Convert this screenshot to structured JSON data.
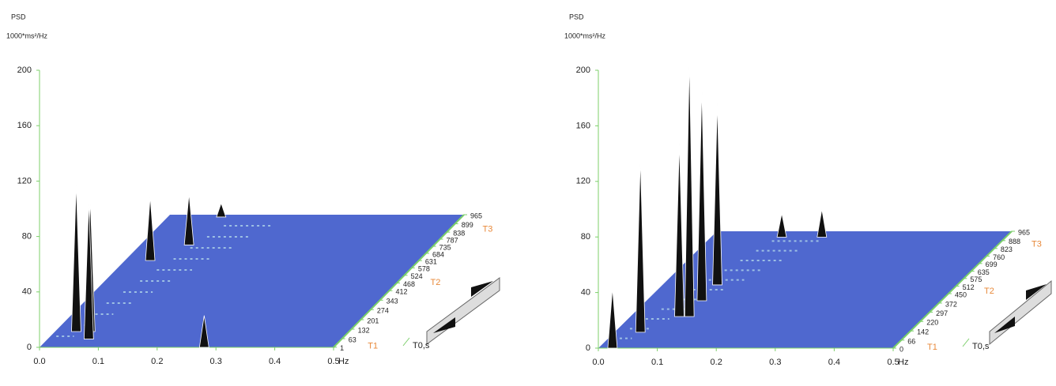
{
  "chart_data": [
    {
      "type": "waterfall3d",
      "ylabel": "PSD",
      "yunit": "1000*ms²/Hz",
      "xlabel": "Hz",
      "zlabel": "T0,s",
      "depth_markers": [
        "T1",
        "T2",
        "T3"
      ],
      "ylim": [
        0,
        200
      ],
      "yticks": [
        0,
        40,
        80,
        120,
        160,
        200
      ],
      "xlim": [
        0,
        0.5
      ],
      "xticks": [
        {
          "value": 0,
          "label": "0.0"
        },
        0.1,
        0.2,
        0.3,
        0.4,
        0.5
      ],
      "zlim": [
        0,
        965
      ],
      "zticks": [
        1,
        63,
        132,
        201,
        274,
        343,
        412,
        468,
        524,
        578,
        631,
        684,
        735,
        787,
        838,
        899,
        965
      ],
      "plane_color": "#4f68cf",
      "axis_color": "#7ccf6a",
      "color": "#111111",
      "peaks": {
        "f": [
          0.036,
          0.06,
          0.07,
          0.043,
          0.083,
          0.28,
          0.091
        ],
        "t": [
          115,
          115,
          60,
          632,
          745,
          0,
          948
        ],
        "values": [
          107,
          95,
          100,
          46,
          37,
          23,
          10
        ]
      }
    },
    {
      "type": "waterfall3d",
      "ylabel": "PSD",
      "yunit": "1000*ms²/Hz",
      "xlabel": "Hz",
      "zlabel": "T0,s",
      "depth_markers": [
        "T1",
        "T2",
        "T3"
      ],
      "ylim": [
        0,
        200
      ],
      "yticks": [
        0,
        40,
        80,
        120,
        160,
        200
      ],
      "xlim": [
        0,
        0.5
      ],
      "xticks": [
        {
          "value": 0,
          "label": "0.0"
        },
        0.1,
        0.2,
        0.3,
        0.4,
        0.5
      ],
      "zlim": [
        0,
        965
      ],
      "zticks": [
        0,
        66,
        142,
        220,
        297,
        372,
        450,
        512,
        575,
        635,
        699,
        760,
        823,
        888,
        965
      ],
      "plane_color": "#4f68cf",
      "axis_color": "#7ccf6a",
      "color": "#111111",
      "peaks": {
        "f": [
          0.044,
          0.1,
          0.094,
          0.093,
          0.083,
          0.024,
          0.188,
          0.12
        ],
        "t": [
          131,
          261,
          391,
          522,
          261,
          0,
          917,
          917
        ],
        "values": [
          125,
          185,
          153,
          131,
          125,
          43,
          20,
          17
        ]
      }
    }
  ]
}
